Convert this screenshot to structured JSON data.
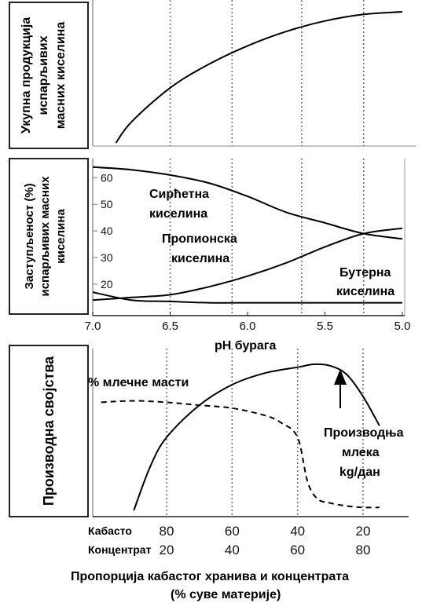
{
  "chart_data": [
    {
      "type": "line",
      "ylabel": "Укупна продукција испарљивих масних киселина",
      "x_axis_reversed": true,
      "xlim": [
        7.0,
        5.0
      ],
      "gridlines_x": [
        6.5,
        6.1,
        5.65,
        5.25
      ],
      "series": [
        {
          "x": [
            6.85,
            6.75,
            6.5,
            6.25,
            6.0,
            5.75,
            5.5,
            5.25,
            5.0
          ],
          "y": [
            0.0,
            0.16,
            0.42,
            0.6,
            0.74,
            0.85,
            0.93,
            0.98,
            1.0
          ]
        }
      ]
    },
    {
      "type": "line",
      "ylabel": "Заступљеност (%) испарљивих масних киселина",
      "xlabel": "pH бурага",
      "x_axis_reversed": true,
      "xlim": [
        7.0,
        5.0
      ],
      "ylim": [
        12,
        66
      ],
      "yticks": [
        20,
        30,
        40,
        50,
        60
      ],
      "xticks": [
        "7.0",
        "6.5",
        "6.0",
        "5.5",
        "5.0"
      ],
      "gridlines_x": [
        6.5,
        6.1,
        5.65,
        5.25
      ],
      "series": [
        {
          "name": "Сирћетна киселина",
          "x": [
            7.0,
            6.75,
            6.5,
            6.25,
            6.0,
            5.75,
            5.5,
            5.25,
            5.0
          ],
          "y": [
            64,
            63,
            61,
            58,
            53,
            47,
            43,
            39,
            37
          ]
        },
        {
          "name": "Пропионска киселина",
          "x": [
            7.0,
            6.75,
            6.5,
            6.25,
            6.0,
            5.75,
            5.5,
            5.25,
            5.0
          ],
          "y": [
            14,
            15,
            16,
            19,
            23,
            28,
            34,
            39,
            41
          ]
        },
        {
          "name": "Бутерна киселина",
          "x": [
            7.0,
            6.75,
            6.5,
            6.25,
            6.0,
            5.75,
            5.5,
            5.25,
            5.0
          ],
          "y": [
            17,
            14,
            13.5,
            13,
            13,
            13,
            13,
            13,
            13
          ]
        }
      ],
      "annotations": [
        "Сирћетна киселина",
        "Пропионска киселина",
        "Бутерна киселина"
      ]
    },
    {
      "type": "line",
      "ylabel": "Производна својства",
      "xlabel": "Пропорција кабастог хранива и концентрата (% суве материје)",
      "tick_rows": [
        {
          "label": "Кабасто",
          "values": [
            "80",
            "60",
            "40",
            "20"
          ]
        },
        {
          "label": "Концентрат",
          "values": [
            "20",
            "40",
            "60",
            "80"
          ]
        }
      ],
      "x_domain": [
        90,
        10
      ],
      "gridlines_x": [
        80,
        60,
        40,
        20
      ],
      "series": [
        {
          "name": "Производња млека kg/дан",
          "style": "solid",
          "x": [
            90,
            85,
            80,
            70,
            60,
            50,
            40,
            35,
            30,
            25,
            20,
            15
          ],
          "y": [
            0.0,
            0.3,
            0.5,
            0.72,
            0.86,
            0.94,
            0.98,
            1.0,
            0.99,
            0.93,
            0.78,
            0.58
          ]
        },
        {
          "name": "% млечне масти",
          "style": "dashed",
          "x": [
            100,
            90,
            80,
            70,
            60,
            50,
            45,
            40,
            37,
            34,
            30,
            25,
            20,
            15
          ],
          "y": [
            0.74,
            0.75,
            0.74,
            0.72,
            0.7,
            0.65,
            0.6,
            0.5,
            0.2,
            0.08,
            0.05,
            0.03,
            0.02,
            0.02
          ]
        }
      ],
      "annotations": [
        "% млечне масти",
        "Производња млека kg/дан"
      ]
    }
  ]
}
